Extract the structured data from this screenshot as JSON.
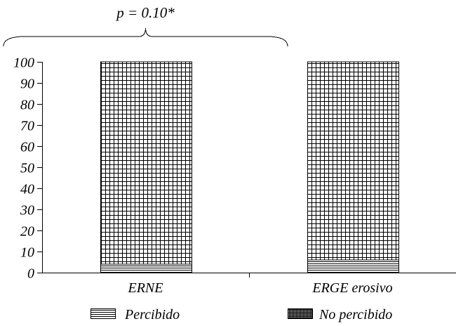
{
  "chart_data": {
    "type": "bar",
    "stacked": true,
    "categories": [
      "ERNE",
      "ERGE erosivo"
    ],
    "series": [
      {
        "name": "Percibido",
        "values": [
          4,
          6
        ],
        "pattern": "horizontal-lines"
      },
      {
        "name": "No percibido",
        "values": [
          96,
          94
        ],
        "pattern": "grid"
      }
    ],
    "y_ticks": [
      0,
      10,
      20,
      30,
      40,
      50,
      60,
      70,
      80,
      90,
      100
    ],
    "ylim": [
      0,
      100
    ],
    "title": "",
    "xlabel": "",
    "ylabel": "",
    "grid": false,
    "legend_position": "bottom",
    "annotation": {
      "text": "p = 0.10*",
      "bracket_over": "ERNE"
    }
  }
}
